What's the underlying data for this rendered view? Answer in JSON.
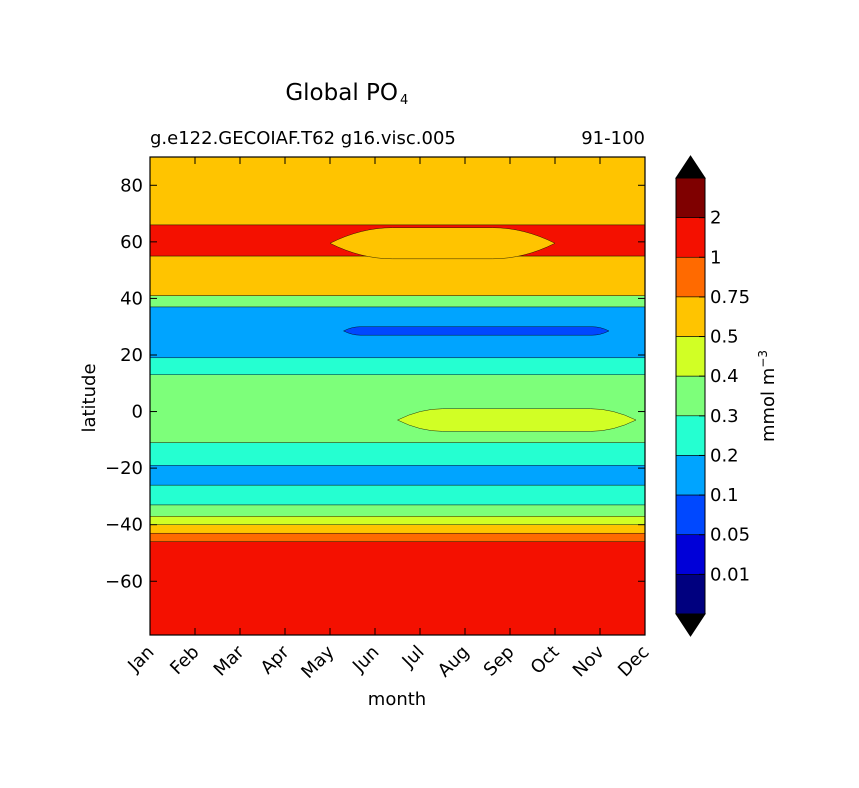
{
  "chart_data": {
    "type": "contour",
    "title_main": "Global PO",
    "title_sub": "4",
    "subtitle_left": "g.e122.GECOIAF.T62 g16.visc.005",
    "subtitle_right": "91-100",
    "xlabel": "month",
    "ylabel": "latitude",
    "x_ticks": [
      "Jan",
      "Feb",
      "Mar",
      "Apr",
      "May",
      "Jun",
      "Jul",
      "Aug",
      "Sep",
      "Oct",
      "Nov",
      "Dec"
    ],
    "y_ticks": [
      "80",
      "60",
      "40",
      "20",
      "0",
      "−20",
      "−40",
      "−60"
    ],
    "y_tick_values": [
      80,
      60,
      40,
      20,
      0,
      -20,
      -40,
      -60
    ],
    "ylim": [
      -79,
      90
    ],
    "xlim": [
      1,
      12
    ],
    "colorbar": {
      "label": "mmol m",
      "label_sup": "−3",
      "tick_labels": [
        "2",
        "1",
        "0.75",
        "0.5",
        "0.4",
        "0.3",
        "0.2",
        "0.1",
        "0.05",
        "0.01"
      ],
      "levels": [
        0.01,
        0.05,
        0.1,
        0.2,
        0.3,
        0.4,
        0.5,
        0.75,
        1,
        2
      ],
      "colors": [
        "#00007f",
        "#0000d8",
        "#0048ff",
        "#00a4ff",
        "#25ffd1",
        "#7dff7a",
        "#d1ff25",
        "#ffc400",
        "#ff6a00",
        "#f41000",
        "#7f0000"
      ],
      "extend": "both"
    },
    "bands": [
      {
        "from": -79,
        "to": -46,
        "level": "1-2"
      },
      {
        "from": -46,
        "to": -43,
        "level": "0.75-1"
      },
      {
        "from": -43,
        "to": -40,
        "level": "0.5-0.75"
      },
      {
        "from": -40,
        "to": -37,
        "level": "0.4-0.5"
      },
      {
        "from": -37,
        "to": -33,
        "level": "0.3-0.4"
      },
      {
        "from": -33,
        "to": -26,
        "level": "0.2-0.3"
      },
      {
        "from": -26,
        "to": -19,
        "level": "0.1-0.2"
      },
      {
        "from": -19,
        "to": -11,
        "level": "0.2-0.3"
      },
      {
        "from": -11,
        "to": 13,
        "level": "0.3-0.4"
      },
      {
        "from": 13,
        "to": 19,
        "level": "0.2-0.3"
      },
      {
        "from": 19,
        "to": 37,
        "level": "0.1-0.2"
      },
      {
        "from": 37,
        "to": 41,
        "level": "0.3-0.4"
      },
      {
        "from": 41,
        "to": 55,
        "level": "0.5-0.75"
      },
      {
        "from": 55,
        "to": 66,
        "level": "1-2"
      },
      {
        "from": 66,
        "to": 90,
        "level": "0.5-0.75"
      }
    ],
    "features": [
      {
        "name": "equatorial-0.4 patch",
        "months": [
          6.5,
          11.8
        ],
        "lat": [
          -7,
          1
        ],
        "level": "0.4-0.5"
      },
      {
        "name": "subtropical-0.05 patch",
        "months": [
          5.3,
          11.2
        ],
        "lat": [
          27,
          30
        ],
        "level": "0.05-0.1"
      },
      {
        "name": "summer-low northern band",
        "months": [
          5,
          10
        ],
        "lat": [
          54,
          65
        ],
        "level": "0.5-0.75"
      }
    ]
  }
}
